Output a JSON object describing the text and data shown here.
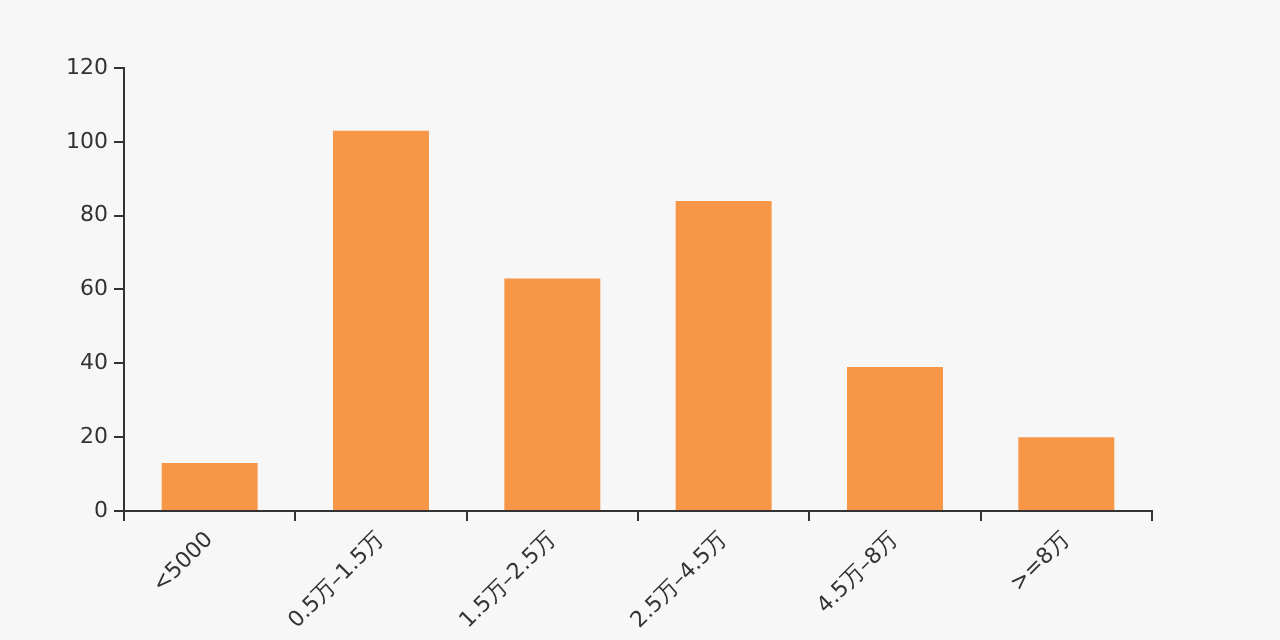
{
  "chart_data": {
    "type": "bar",
    "categories": [
      "<5000",
      "0.5万–1.5万",
      "1.5万–2.5万",
      "2.5万–4.5万",
      "4.5万–8万",
      ">=8万"
    ],
    "values": [
      13,
      103,
      63,
      84,
      39,
      20
    ],
    "color": "#f79646",
    "ylim": [
      0,
      120
    ],
    "yticks": [
      0,
      20,
      40,
      60,
      80,
      100,
      120
    ],
    "grid": false,
    "legend": false
  }
}
